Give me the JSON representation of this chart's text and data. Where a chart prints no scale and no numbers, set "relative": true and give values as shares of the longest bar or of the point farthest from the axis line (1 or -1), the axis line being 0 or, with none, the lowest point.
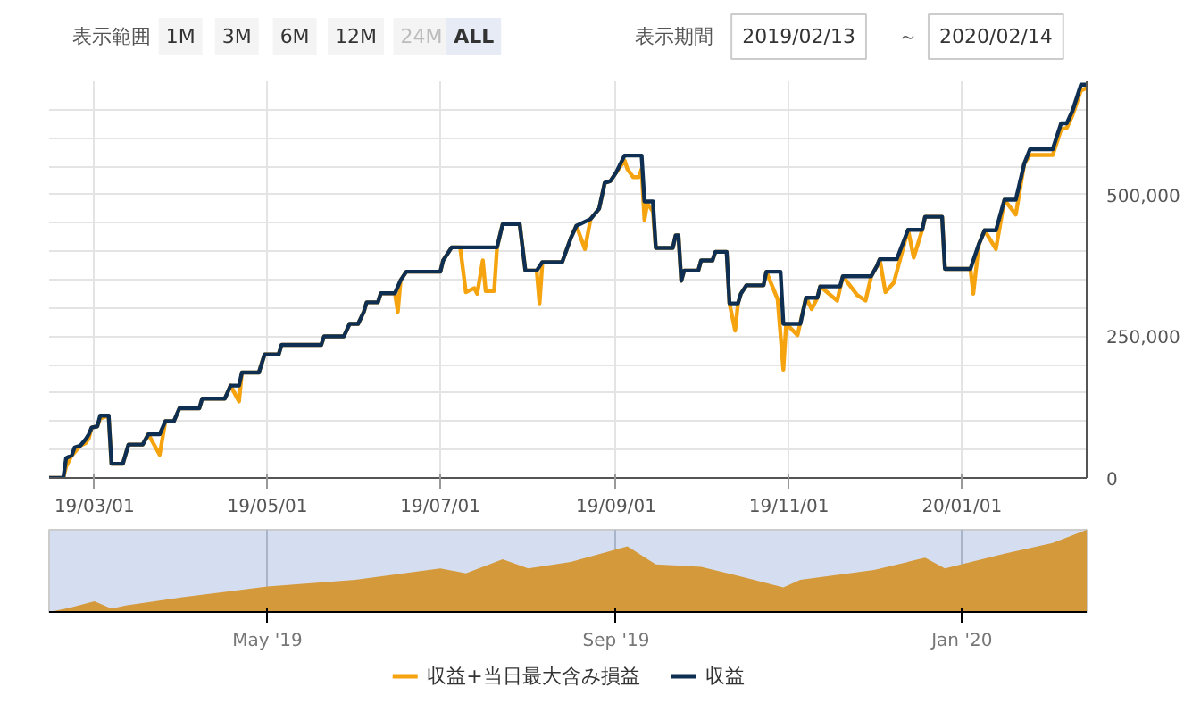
{
  "chart_data": [
    {
      "type": "line",
      "annotations": [
        "表示範囲",
        "1M",
        "3M",
        "6M",
        "12M",
        "24M",
        "ALL",
        "表示期間",
        "2019/02/13",
        "～",
        "2020/02/14"
      ],
      "xlim": [
        "2019-02-13",
        "2020-02-14"
      ],
      "ylim": [
        0,
        700000
      ],
      "xticks": [
        {
          "value": "2019-03-01",
          "label": "19/03/01"
        },
        {
          "value": "2019-05-01",
          "label": "19/05/01"
        },
        {
          "value": "2019-07-01",
          "label": "19/07/01"
        },
        {
          "value": "2019-09-01",
          "label": "19/09/01"
        },
        {
          "value": "2019-11-01",
          "label": "19/11/01"
        },
        {
          "value": "2020-01-01",
          "label": "20/01/01"
        }
      ],
      "yticks": [
        0,
        {
          "value": 50000,
          "label": null
        },
        {
          "value": 100000,
          "label": null
        },
        {
          "value": 150000,
          "label": null
        },
        {
          "value": 200000,
          "label": null
        },
        {
          "value": 250000,
          "label": "250,000"
        },
        {
          "value": 300000,
          "label": null
        },
        {
          "value": 350000,
          "label": null
        },
        {
          "value": 400000,
          "label": null
        },
        {
          "value": 450000,
          "label": null
        },
        {
          "value": 500000,
          "label": "500,000"
        },
        {
          "value": 550000,
          "label": null
        },
        {
          "value": 600000,
          "label": null
        },
        {
          "value": 650000,
          "label": null
        }
      ],
      "grid": true,
      "legend": "bottom",
      "series": [
        {
          "name": "収益+当日最大含み損益",
          "color": "#f5a30f",
          "x": [
            "2019-02-13",
            "2019-02-18",
            "2019-02-19",
            "2019-02-21",
            "2019-02-22",
            "2019-02-24",
            "2019-02-26",
            "2019-02-27",
            "2019-02-28",
            "2019-03-02",
            "2019-03-03",
            "2019-03-06",
            "2019-03-07",
            "2019-03-11",
            "2019-03-13",
            "2019-03-18",
            "2019-03-20",
            "2019-03-24",
            "2019-03-26",
            "2019-03-29",
            "2019-03-31",
            "2019-04-07",
            "2019-04-08",
            "2019-04-16",
            "2019-04-18",
            "2019-04-21",
            "2019-04-22",
            "2019-04-28",
            "2019-04-30",
            "2019-05-05",
            "2019-05-06",
            "2019-05-20",
            "2019-05-21",
            "2019-05-28",
            "2019-05-30",
            "2019-06-02",
            "2019-06-04",
            "2019-06-05",
            "2019-06-09",
            "2019-06-10",
            "2019-06-15",
            "2019-06-16",
            "2019-06-17",
            "2019-06-19",
            "2019-07-01",
            "2019-07-02",
            "2019-07-05",
            "2019-07-08",
            "2019-07-10",
            "2019-07-13",
            "2019-07-14",
            "2019-07-16",
            "2019-07-17",
            "2019-07-20",
            "2019-07-21",
            "2019-07-23",
            "2019-07-29",
            "2019-07-31",
            "2019-08-04",
            "2019-08-05",
            "2019-08-06",
            "2019-08-13",
            "2019-08-16",
            "2019-08-18",
            "2019-08-21",
            "2019-08-23",
            "2019-08-26",
            "2019-08-28",
            "2019-08-30",
            "2019-09-01",
            "2019-09-04",
            "2019-09-05",
            "2019-09-07",
            "2019-09-09",
            "2019-09-10",
            "2019-09-11",
            "2019-09-12",
            "2019-09-14",
            "2019-09-15",
            "2019-09-21",
            "2019-09-22",
            "2019-09-23",
            "2019-09-24",
            "2019-09-25",
            "2019-09-30",
            "2019-10-01",
            "2019-10-05",
            "2019-10-06",
            "2019-10-10",
            "2019-10-11",
            "2019-10-13",
            "2019-10-14",
            "2019-10-15",
            "2019-10-17",
            "2019-10-23",
            "2019-10-24",
            "2019-10-28",
            "2019-10-30",
            "2019-10-31",
            "2019-11-04",
            "2019-11-07",
            "2019-11-09",
            "2019-11-11",
            "2019-11-12",
            "2019-11-18",
            "2019-11-20",
            "2019-11-25",
            "2019-11-28",
            "2019-11-30",
            "2019-12-02",
            "2019-12-03",
            "2019-12-05",
            "2019-12-08",
            "2019-12-13",
            "2019-12-15",
            "2019-12-18",
            "2019-12-19",
            "2019-12-25",
            "2019-12-26",
            "2020-01-04",
            "2020-01-05",
            "2020-01-07",
            "2020-01-09",
            "2020-01-13",
            "2020-01-16",
            "2020-01-20",
            "2020-01-23",
            "2020-01-25",
            "2020-02-02",
            "2020-02-05",
            "2020-02-07",
            "2020-02-09",
            "2020-02-12",
            "2020-02-14"
          ],
          "values": [
            0,
            0,
            20000,
            40000,
            45000,
            57000,
            62000,
            70000,
            89000,
            91000,
            105000,
            110000,
            25000,
            25000,
            59000,
            59000,
            77000,
            41000,
            100000,
            100000,
            123000,
            123000,
            140000,
            140000,
            163000,
            135000,
            186000,
            186000,
            218000,
            218000,
            235000,
            235000,
            250000,
            250000,
            272000,
            272000,
            293000,
            310000,
            310000,
            326000,
            326000,
            293000,
            349000,
            364000,
            364000,
            384000,
            407000,
            407000,
            328000,
            335000,
            325000,
            384000,
            330000,
            330000,
            407000,
            448000,
            448000,
            366000,
            366000,
            308000,
            381000,
            381000,
            423000,
            445000,
            404000,
            457000,
            475000,
            521000,
            524000,
            539000,
            560000,
            545000,
            531000,
            531000,
            545000,
            455000,
            485000,
            470000,
            406000,
            406000,
            428000,
            428000,
            348000,
            366000,
            366000,
            384000,
            384000,
            399000,
            399000,
            308000,
            260000,
            308000,
            325000,
            340000,
            340000,
            364000,
            315000,
            191000,
            272000,
            252000,
            318000,
            298000,
            318000,
            338000,
            313000,
            356000,
            323000,
            313000,
            356000,
            374000,
            386000,
            328000,
            345000,
            438000,
            389000,
            438000,
            461000,
            461000,
            369000,
            369000,
            325000,
            413000,
            437000,
            404000,
            491000,
            465000,
            555000,
            570000,
            570000,
            615000,
            618000,
            640000,
            684000,
            688000
          ]
        },
        {
          "name": "収益",
          "color": "#0e2f52",
          "x": [
            "2019-02-13",
            "2019-02-18",
            "2019-02-19",
            "2019-02-21",
            "2019-02-22",
            "2019-02-24",
            "2019-02-26",
            "2019-02-27",
            "2019-02-28",
            "2019-03-02",
            "2019-03-03",
            "2019-03-06",
            "2019-03-07",
            "2019-03-11",
            "2019-03-13",
            "2019-03-18",
            "2019-03-20",
            "2019-03-24",
            "2019-03-26",
            "2019-03-29",
            "2019-03-31",
            "2019-04-07",
            "2019-04-08",
            "2019-04-16",
            "2019-04-18",
            "2019-04-21",
            "2019-04-22",
            "2019-04-28",
            "2019-04-30",
            "2019-05-05",
            "2019-05-06",
            "2019-05-20",
            "2019-05-21",
            "2019-05-28",
            "2019-05-30",
            "2019-06-02",
            "2019-06-04",
            "2019-06-05",
            "2019-06-09",
            "2019-06-10",
            "2019-06-15",
            "2019-06-17",
            "2019-06-19",
            "2019-07-01",
            "2019-07-02",
            "2019-07-05",
            "2019-07-21",
            "2019-07-23",
            "2019-07-29",
            "2019-07-31",
            "2019-08-04",
            "2019-08-06",
            "2019-08-13",
            "2019-08-16",
            "2019-08-18",
            "2019-08-23",
            "2019-08-26",
            "2019-08-28",
            "2019-08-30",
            "2019-09-01",
            "2019-09-04",
            "2019-09-10",
            "2019-09-11",
            "2019-09-14",
            "2019-09-15",
            "2019-09-21",
            "2019-09-22",
            "2019-09-23",
            "2019-09-24",
            "2019-09-25",
            "2019-09-30",
            "2019-10-01",
            "2019-10-05",
            "2019-10-06",
            "2019-10-10",
            "2019-10-11",
            "2019-10-14",
            "2019-10-15",
            "2019-10-17",
            "2019-10-23",
            "2019-10-24",
            "2019-10-29",
            "2019-10-30",
            "2019-11-05",
            "2019-11-07",
            "2019-11-11",
            "2019-11-12",
            "2019-11-19",
            "2019-11-20",
            "2019-11-30",
            "2019-12-02",
            "2019-12-03",
            "2019-12-09",
            "2019-12-13",
            "2019-12-18",
            "2019-12-19",
            "2019-12-25",
            "2019-12-26",
            "2020-01-04",
            "2020-01-07",
            "2020-01-09",
            "2020-01-13",
            "2020-01-16",
            "2020-01-20",
            "2020-01-23",
            "2020-01-25",
            "2020-02-02",
            "2020-02-05",
            "2020-02-07",
            "2020-02-09",
            "2020-02-12",
            "2020-02-14"
          ],
          "values": [
            0,
            0,
            35000,
            40000,
            54000,
            57000,
            69000,
            77000,
            89000,
            91000,
            110000,
            110000,
            25000,
            25000,
            59000,
            59000,
            77000,
            77000,
            100000,
            100000,
            123000,
            123000,
            140000,
            140000,
            163000,
            163000,
            186000,
            186000,
            218000,
            218000,
            235000,
            235000,
            250000,
            250000,
            272000,
            272000,
            293000,
            310000,
            310000,
            326000,
            326000,
            349000,
            364000,
            364000,
            384000,
            407000,
            407000,
            448000,
            448000,
            366000,
            366000,
            381000,
            381000,
            423000,
            445000,
            457000,
            475000,
            521000,
            524000,
            539000,
            569000,
            569000,
            488000,
            488000,
            406000,
            406000,
            428000,
            428000,
            348000,
            366000,
            366000,
            384000,
            384000,
            399000,
            399000,
            308000,
            308000,
            325000,
            340000,
            340000,
            364000,
            364000,
            272000,
            272000,
            318000,
            318000,
            338000,
            338000,
            356000,
            356000,
            374000,
            386000,
            386000,
            438000,
            438000,
            461000,
            461000,
            369000,
            369000,
            413000,
            437000,
            437000,
            491000,
            491000,
            555000,
            580000,
            580000,
            626000,
            626000,
            648000,
            694000,
            694000
          ]
        }
      ]
    },
    {
      "type": "area",
      "relative": true,
      "color": "#d4993a",
      "xlim": [
        "2019-02-13",
        "2020-02-14"
      ],
      "grid": "x",
      "xticks": [
        {
          "value": "2019-05-01",
          "label": "May '19"
        },
        {
          "value": "2019-09-01",
          "label": "Sep '19"
        },
        {
          "value": "2020-01-01",
          "label": "Jan '20"
        }
      ],
      "x": [
        "2019-02-13",
        "2019-02-20",
        "2019-03-01",
        "2019-03-07",
        "2019-03-12",
        "2019-04-01",
        "2019-05-01",
        "2019-06-01",
        "2019-07-01",
        "2019-07-10",
        "2019-07-23",
        "2019-08-01",
        "2019-08-16",
        "2019-09-05",
        "2019-09-15",
        "2019-10-01",
        "2019-10-14",
        "2019-10-30",
        "2019-11-05",
        "2019-12-01",
        "2019-12-19",
        "2019-12-26",
        "2020-01-16",
        "2020-02-02",
        "2020-02-14"
      ],
      "values": [
        0,
        0.05,
        0.13,
        0.04,
        0.08,
        0.18,
        0.31,
        0.39,
        0.53,
        0.47,
        0.64,
        0.53,
        0.61,
        0.8,
        0.58,
        0.55,
        0.44,
        0.3,
        0.39,
        0.51,
        0.66,
        0.53,
        0.71,
        0.84,
        1
      ]
    }
  ]
}
